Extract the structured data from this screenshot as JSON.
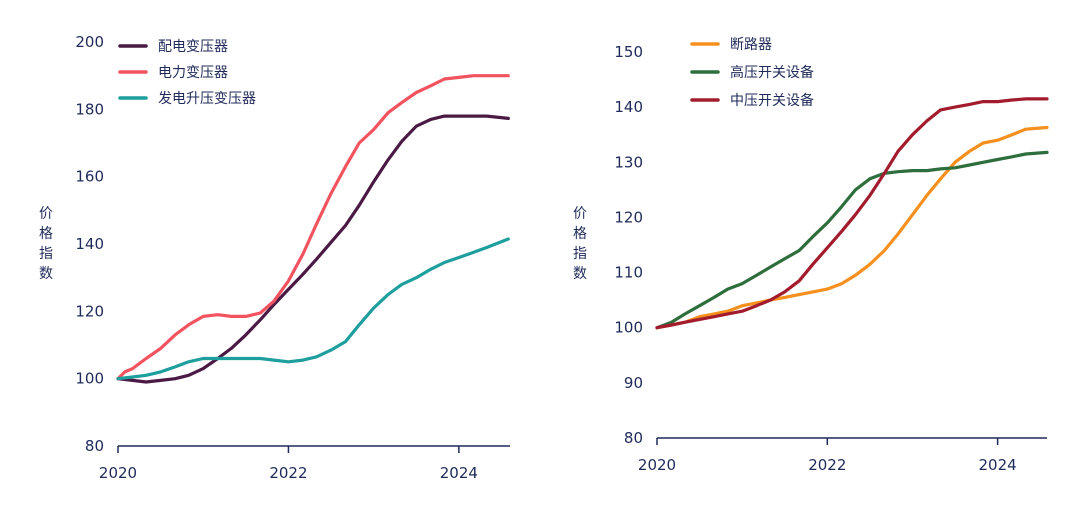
{
  "chart_data": [
    {
      "type": "line",
      "ylabel": "价格指数",
      "xlim": [
        2020,
        2024.6
      ],
      "ylim": [
        80,
        200
      ],
      "yticks": [
        80,
        100,
        120,
        140,
        160,
        180,
        200
      ],
      "xticks": [
        2020,
        2022,
        2024
      ],
      "grid": false,
      "legend_position": "top-left",
      "series": [
        {
          "name": "配电变压器",
          "color": "#4a1a45",
          "x": [
            2020,
            2020.17,
            2020.33,
            2020.5,
            2020.67,
            2020.83,
            2021,
            2021.17,
            2021.33,
            2021.5,
            2021.67,
            2021.83,
            2022,
            2022.17,
            2022.33,
            2022.5,
            2022.67,
            2022.83,
            2023,
            2023.17,
            2023.33,
            2023.5,
            2023.67,
            2023.83,
            2024,
            2024.17,
            2024.33,
            2024.58
          ],
          "y": [
            100,
            99.5,
            99,
            99.5,
            100,
            101,
            103,
            106,
            109,
            113,
            117.5,
            122,
            126.5,
            131,
            135.5,
            140.5,
            145.5,
            151.5,
            158.5,
            165,
            170.5,
            175,
            177,
            178,
            178,
            178,
            178,
            177.3
          ]
        },
        {
          "name": "电力变压器",
          "color": "#f2535f",
          "x": [
            2020,
            2020.08,
            2020.17,
            2020.33,
            2020.5,
            2020.67,
            2020.83,
            2021,
            2021.17,
            2021.33,
            2021.5,
            2021.67,
            2021.83,
            2022,
            2022.17,
            2022.33,
            2022.5,
            2022.67,
            2022.83,
            2023,
            2023.17,
            2023.33,
            2023.5,
            2023.67,
            2023.83,
            2024,
            2024.17,
            2024.33,
            2024.58
          ],
          "y": [
            100,
            102,
            103,
            106,
            109,
            113,
            116,
            118.5,
            119,
            118.5,
            118.5,
            119.5,
            123,
            129,
            137,
            146,
            155,
            163,
            170,
            174,
            179,
            182,
            185,
            187,
            189,
            189.5,
            190,
            190,
            190
          ]
        },
        {
          "name": "发电升压变压器",
          "color": "#1f9e9e",
          "x": [
            2020,
            2020.17,
            2020.33,
            2020.5,
            2020.67,
            2020.83,
            2021,
            2021.17,
            2021.33,
            2021.5,
            2021.67,
            2021.83,
            2022,
            2022.17,
            2022.33,
            2022.5,
            2022.67,
            2022.83,
            2023,
            2023.17,
            2023.33,
            2023.5,
            2023.67,
            2023.83,
            2024,
            2024.17,
            2024.33,
            2024.58
          ],
          "y": [
            100,
            100.5,
            101,
            102,
            103.5,
            105,
            106,
            106,
            106,
            106,
            106,
            105.5,
            105,
            105.5,
            106.5,
            108.5,
            111,
            116,
            121,
            125,
            128,
            130,
            132.5,
            134.5,
            136,
            137.5,
            139,
            141.5
          ]
        }
      ]
    },
    {
      "type": "line",
      "ylabel": "价格指数",
      "xlim": [
        2020,
        2024.58
      ],
      "ylim": [
        80,
        150
      ],
      "yticks": [
        80,
        90,
        100,
        110,
        120,
        130,
        140,
        150
      ],
      "xticks": [
        2020,
        2022,
        2024
      ],
      "grid": false,
      "legend_position": "top-left",
      "series": [
        {
          "name": "断路器",
          "color": "#f5901e",
          "x": [
            2020,
            2020.17,
            2020.33,
            2020.5,
            2020.67,
            2020.83,
            2021,
            2021.17,
            2021.33,
            2021.5,
            2021.67,
            2021.83,
            2022,
            2022.17,
            2022.33,
            2022.5,
            2022.67,
            2022.83,
            2023,
            2023.17,
            2023.33,
            2023.5,
            2023.67,
            2023.83,
            2024,
            2024.17,
            2024.33,
            2024.58
          ],
          "y": [
            100,
            100.5,
            101,
            102,
            102.5,
            103,
            104,
            104.5,
            105,
            105.5,
            106,
            106.5,
            107,
            108,
            109.5,
            111.5,
            114,
            117,
            120.5,
            124,
            127,
            130,
            132,
            133.5,
            134,
            135,
            136,
            136.3
          ]
        },
        {
          "name": "高压开关设备",
          "color": "#2e6e3c",
          "x": [
            2020,
            2020.17,
            2020.33,
            2020.5,
            2020.67,
            2020.83,
            2021,
            2021.17,
            2021.33,
            2021.5,
            2021.67,
            2021.83,
            2022,
            2022.17,
            2022.33,
            2022.5,
            2022.67,
            2022.83,
            2023,
            2023.17,
            2023.33,
            2023.5,
            2023.67,
            2023.83,
            2024,
            2024.17,
            2024.33,
            2024.58
          ],
          "y": [
            100,
            101,
            102.5,
            104,
            105.5,
            107,
            108,
            109.5,
            111,
            112.5,
            114,
            116.5,
            119,
            122,
            125,
            127,
            128,
            128.3,
            128.5,
            128.5,
            128.8,
            129,
            129.5,
            130,
            130.5,
            131,
            131.5,
            131.8
          ]
        },
        {
          "name": "中压开关设备",
          "color": "#a31c2e",
          "x": [
            2020,
            2020.17,
            2020.33,
            2020.5,
            2020.67,
            2020.83,
            2021,
            2021.17,
            2021.33,
            2021.5,
            2021.67,
            2021.83,
            2022,
            2022.17,
            2022.33,
            2022.5,
            2022.67,
            2022.83,
            2023,
            2023.17,
            2023.33,
            2023.5,
            2023.67,
            2023.83,
            2024,
            2024.17,
            2024.33,
            2024.58
          ],
          "y": [
            100,
            100.5,
            101,
            101.5,
            102,
            102.5,
            103,
            104,
            105,
            106.5,
            108.5,
            111.5,
            114.5,
            117.5,
            120.5,
            124,
            128,
            132,
            135,
            137.5,
            139.5,
            140,
            140.5,
            141,
            141,
            141.3,
            141.5,
            141.5
          ]
        }
      ]
    }
  ]
}
